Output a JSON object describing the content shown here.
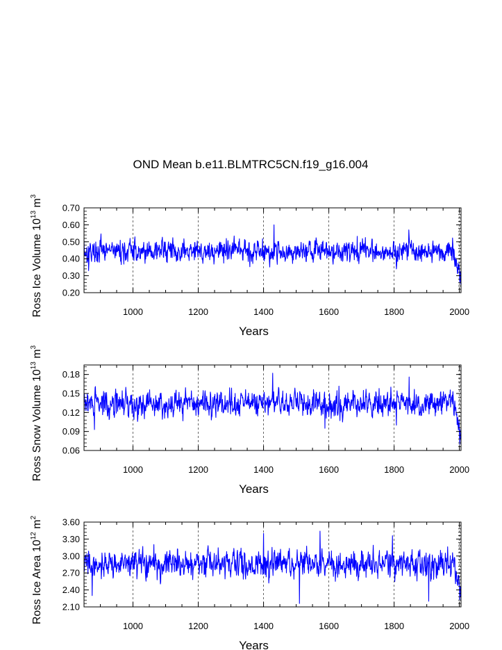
{
  "title": "OND Mean b.e11.BLMTRC5CN.f19_g16.004",
  "chart_data": [
    {
      "type": "line",
      "name": "ross-ice-volume",
      "ylabel_parts": [
        "Ross Ice Volume 10",
        "13",
        " m",
        "3"
      ],
      "xlabel": "Years",
      "xlim": [
        850,
        2005
      ],
      "ylim": [
        0.2,
        0.7
      ],
      "xticks": [
        1000,
        1200,
        1400,
        1600,
        1800,
        2000
      ],
      "yticks": [
        "0.20",
        "0.30",
        "0.40",
        "0.50",
        "0.60",
        "0.70"
      ],
      "grid_x": [
        1000,
        1200,
        1400,
        1600,
        1800,
        2000
      ],
      "series": [
        {
          "name": "Ross Ice Volume",
          "color": "#0000ff",
          "mean": 0.445,
          "amp": 0.045,
          "seed": 17,
          "end_trend_from": 1975,
          "end_value": 0.27,
          "peaks": [
            [
              850,
              0.51
            ],
            [
              864,
              0.33
            ],
            [
              1432,
              0.6
            ],
            [
              1845,
              0.57
            ],
            [
              1807,
              0.34
            ],
            [
              2001,
              0.26
            ]
          ]
        }
      ]
    },
    {
      "type": "line",
      "name": "ross-snow-volume",
      "ylabel_parts": [
        "Ross Snow Volume 10",
        "13",
        " m",
        "3"
      ],
      "xlabel": "Years",
      "xlim": [
        850,
        2005
      ],
      "ylim": [
        0.06,
        0.195
      ],
      "xticks": [
        1000,
        1200,
        1400,
        1600,
        1800,
        2000
      ],
      "yticks": [
        "0.06",
        "0.09",
        "0.12",
        "0.15",
        "0.18"
      ],
      "grid_x": [
        1000,
        1200,
        1400,
        1600,
        1800,
        2000
      ],
      "series": [
        {
          "name": "Ross Snow Volume",
          "color": "#0000ff",
          "mean": 0.134,
          "amp": 0.014,
          "seed": 29,
          "end_trend_from": 1975,
          "end_value": 0.075,
          "peaks": [
            [
              851,
              0.15
            ],
            [
              882,
              0.093
            ],
            [
              1428,
              0.182
            ],
            [
              1846,
              0.176
            ],
            [
              1807,
              0.1
            ],
            [
              1588,
              0.095
            ],
            [
              2001,
              0.07
            ]
          ]
        }
      ]
    },
    {
      "type": "line",
      "name": "ross-ice-area",
      "ylabel_parts": [
        "Ross Ice Area 10",
        "12",
        " m",
        "2"
      ],
      "xlabel": "Years",
      "xlim": [
        850,
        2005
      ],
      "ylim": [
        2.1,
        3.6
      ],
      "xticks": [
        1000,
        1200,
        1400,
        1600,
        1800,
        2000
      ],
      "yticks": [
        "2.10",
        "2.40",
        "2.70",
        "3.00",
        "3.30",
        "3.60"
      ],
      "grid_x": [
        1000,
        1200,
        1400,
        1600,
        1800,
        2000
      ],
      "series": [
        {
          "name": "Ross Ice Area",
          "color": "#0000ff",
          "mean": 2.86,
          "amp": 0.16,
          "seed": 41,
          "end_trend_from": 1980,
          "end_value": 2.25,
          "peaks": [
            [
              1400,
              3.4
            ],
            [
              1573,
              3.44
            ],
            [
              1510,
              2.16
            ],
            [
              1906,
              2.2
            ],
            [
              1795,
              3.36
            ],
            [
              875,
              2.3
            ],
            [
              2001,
              2.22
            ]
          ]
        }
      ]
    }
  ]
}
